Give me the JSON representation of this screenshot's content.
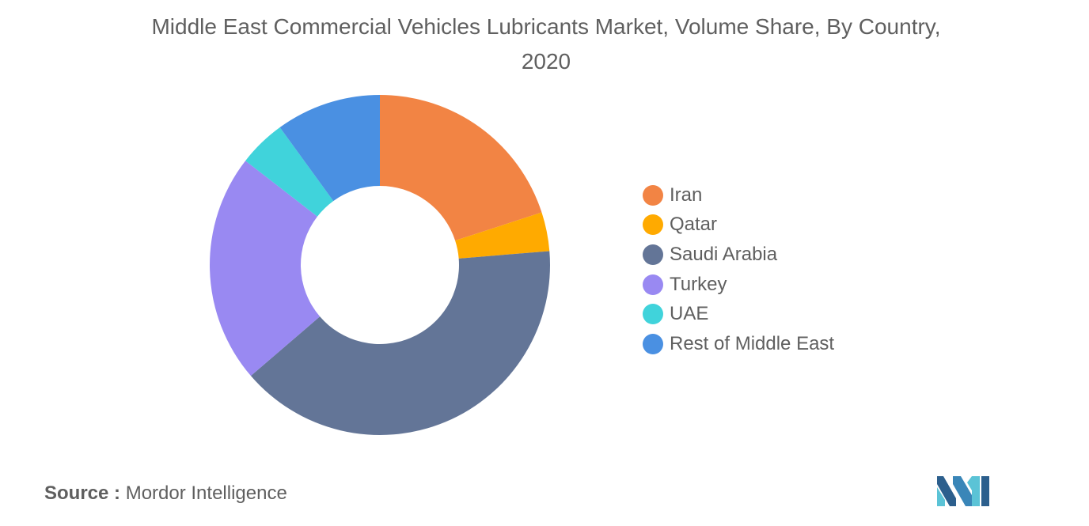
{
  "chart_data": {
    "type": "pie",
    "variant": "donut",
    "title": "Middle East Commercial Vehicles Lubricants Market, Volume Share, By Country, 2020",
    "categories": [
      "Iran",
      "Qatar",
      "Saudi Arabia",
      "Turkey",
      "UAE",
      "Rest of Middle East"
    ],
    "values": [
      20.0,
      3.7,
      40.0,
      21.8,
      4.5,
      10.0
    ],
    "colors": [
      "#F28444",
      "#FFAA00",
      "#637597",
      "#9989F2",
      "#40D3DB",
      "#4A90E2"
    ],
    "start_angle_deg": 90,
    "direction": "clockwise",
    "legend_position": "right"
  },
  "source": {
    "label": "Source :",
    "text": "Mordor Intelligence"
  },
  "logo": {
    "icon": "mordor-intelligence-logo"
  }
}
